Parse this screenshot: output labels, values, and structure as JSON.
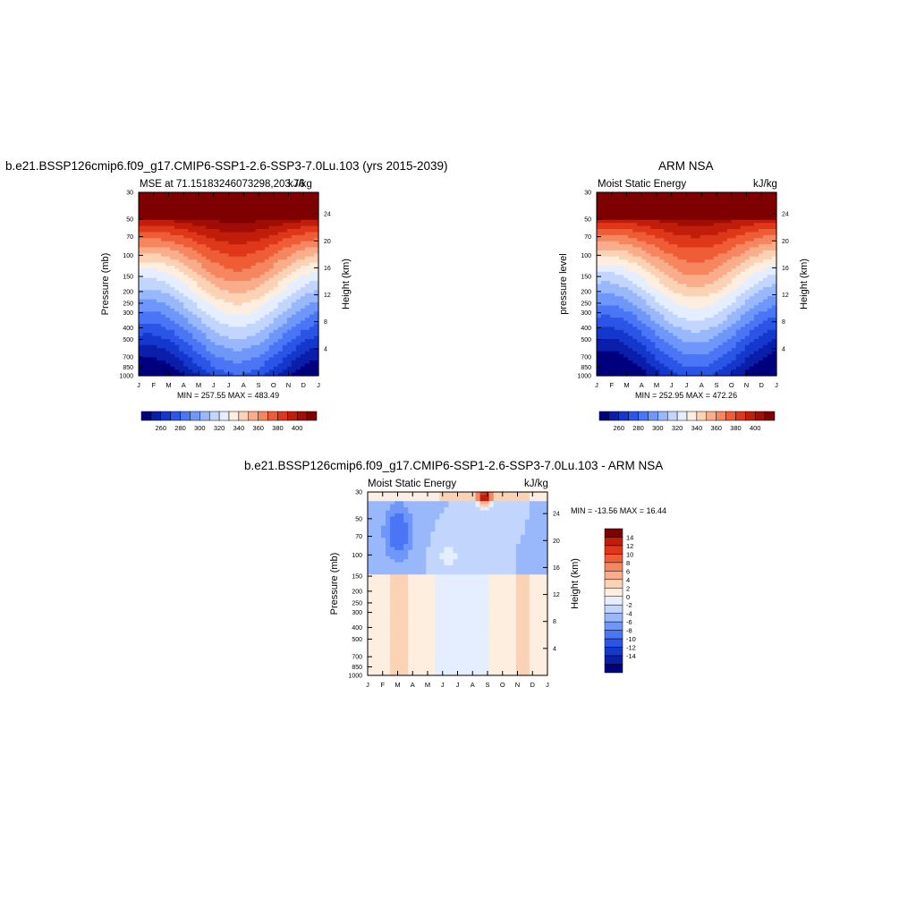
{
  "chart_data": [
    {
      "type": "heatmap",
      "title": "b.e21.BSSP126cmip6.f09_g17.CMIP6-SSP1-2.6-SSP3-7.0Lu.103 (yrs 2015-2039)",
      "subtitle_left": "MSE at 71.15183246073298,203.76",
      "units": "kJ/kg",
      "ylabel": "Pressure (mb)",
      "ylabel_right": "Height (km)",
      "x_ticks": [
        "J",
        "F",
        "M",
        "A",
        "M",
        "J",
        "J",
        "A",
        "S",
        "O",
        "N",
        "D",
        "J"
      ],
      "y_ticks": [
        "30",
        "50",
        "70",
        "100",
        "150",
        "200",
        "250",
        "300",
        "400",
        "500",
        "700",
        "850",
        "1000"
      ],
      "y_ticks_right": [
        "24",
        "20",
        "16",
        "12",
        "8",
        "4"
      ],
      "stats": "MIN = 257.55 MAX = 483.49",
      "colorbar_labels": [
        "260",
        "280",
        "300",
        "320",
        "340",
        "360",
        "380",
        "400"
      ]
    },
    {
      "type": "heatmap",
      "title": "ARM NSA",
      "subtitle_left": "Moist Static Energy",
      "units": "kJ/kg",
      "ylabel": "pressure level",
      "ylabel_right": "Height (km)",
      "x_ticks": [
        "J",
        "F",
        "M",
        "A",
        "M",
        "J",
        "J",
        "A",
        "S",
        "O",
        "N",
        "D",
        "J"
      ],
      "y_ticks": [
        "30",
        "50",
        "70",
        "100",
        "150",
        "200",
        "250",
        "300",
        "400",
        "500",
        "700",
        "850",
        "1000"
      ],
      "y_ticks_right": [
        "24",
        "20",
        "16",
        "12",
        "8",
        "4"
      ],
      "stats": "MIN = 252.95 MAX = 472.26",
      "colorbar_labels": [
        "260",
        "280",
        "300",
        "320",
        "340",
        "360",
        "380",
        "400"
      ]
    },
    {
      "type": "heatmap",
      "title": "b.e21.BSSP126cmip6.f09_g17.CMIP6-SSP1-2.6-SSP3-7.0Lu.103 - ARM NSA",
      "subtitle_left": "Moist Static Energy",
      "units": "kJ/kg",
      "ylabel": "Pressure (mb)",
      "ylabel_right": "Height (km)",
      "x_ticks": [
        "J",
        "F",
        "M",
        "A",
        "M",
        "J",
        "J",
        "A",
        "S",
        "O",
        "N",
        "D",
        "J"
      ],
      "y_ticks": [
        "30",
        "50",
        "70",
        "100",
        "150",
        "200",
        "250",
        "300",
        "400",
        "500",
        "700",
        "850",
        "1000"
      ],
      "y_ticks_right": [
        "24",
        "20",
        "16",
        "12",
        "8",
        "4"
      ],
      "stats": "MIN = -13.56 MAX =  16.44",
      "colorbar_labels": [
        "14",
        "12",
        "10",
        "8",
        "6",
        "4",
        "2",
        "0",
        "-2",
        "-4",
        "-6",
        "-8",
        "-10",
        "-12",
        "-14"
      ]
    }
  ],
  "colors": {
    "abs_scale": [
      "#00007f",
      "#0a1eaa",
      "#1437cc",
      "#2a55e6",
      "#4a76f5",
      "#6f97fa",
      "#99b8fc",
      "#c2d6fd",
      "#e4eefe",
      "#fdeee0",
      "#fcd2b5",
      "#f9ad8a",
      "#f5865f",
      "#ee5d36",
      "#de3719",
      "#c01d0a",
      "#a00d04",
      "#7f0000"
    ],
    "diff_scale": [
      "#00007f",
      "#0a1eaa",
      "#1437cc",
      "#2a55e6",
      "#4a76f5",
      "#6f97fa",
      "#99b8fc",
      "#c2d6fd",
      "#e4eefe",
      "#fdeee0",
      "#fcd2b5",
      "#f9ad8a",
      "#f5865f",
      "#ee5d36",
      "#de3719",
      "#c01d0a",
      "#7f0000"
    ]
  }
}
